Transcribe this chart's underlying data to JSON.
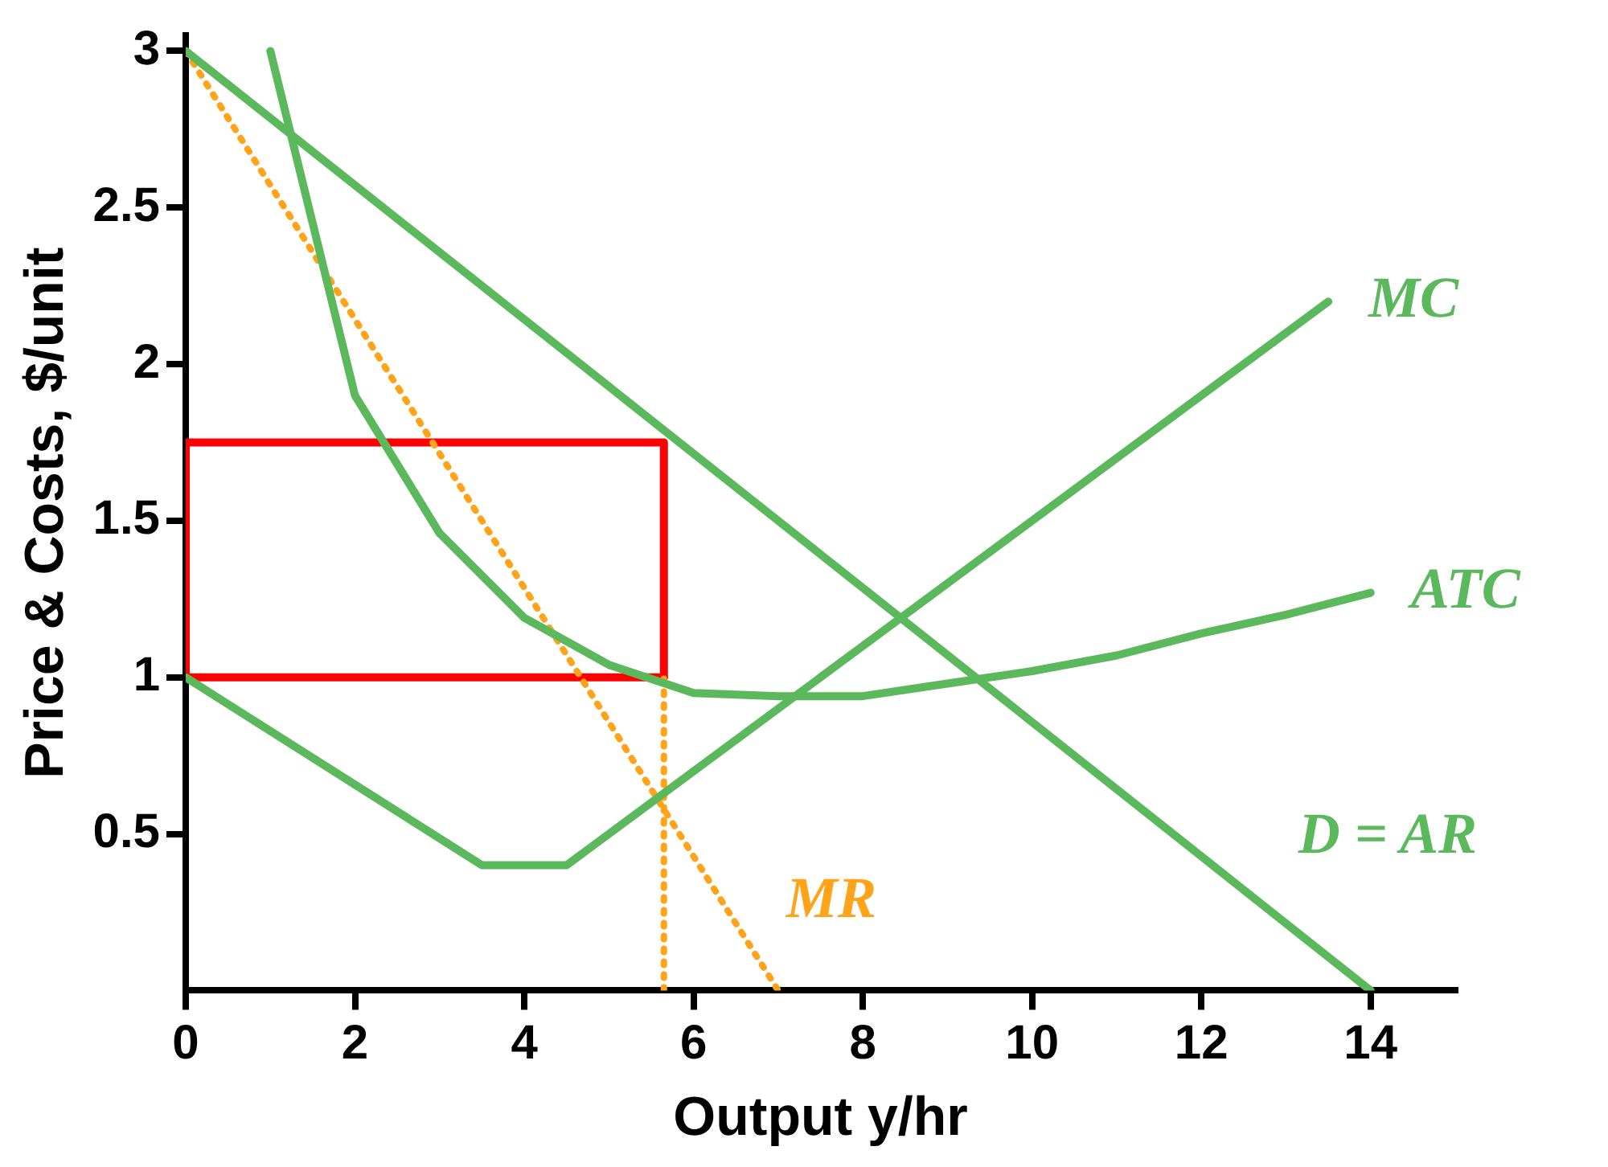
{
  "chart_data": {
    "type": "line",
    "xlabel": "Output y/hr",
    "ylabel": "Price & Costs, $/unit",
    "xlim": [
      0,
      15
    ],
    "ylim": [
      0,
      3.05
    ],
    "xticks": [
      0,
      2,
      4,
      6,
      8,
      10,
      12,
      14
    ],
    "yticks": [
      0.5,
      1,
      1.5,
      2,
      2.5,
      3
    ],
    "grid": false,
    "legend": false,
    "marker": "none",
    "series": [
      {
        "name": "D = AR",
        "color": "#5cb85c",
        "line_style": "solid",
        "x": [
          0,
          14
        ],
        "values": [
          3,
          0
        ]
      },
      {
        "name": "MC",
        "color": "#5cb85c",
        "line_style": "solid",
        "x": [
          0,
          3.5,
          4.5,
          13.5
        ],
        "values": [
          1,
          0.4,
          0.4,
          2.2
        ]
      },
      {
        "name": "ATC",
        "color": "#5cb85c",
        "line_style": "solid",
        "x": [
          1,
          2,
          3,
          4,
          5,
          6,
          7,
          8,
          9,
          10,
          11,
          12,
          13,
          14
        ],
        "values": [
          3,
          1.9,
          1.46,
          1.19,
          1.04,
          0.95,
          0.94,
          0.94,
          0.98,
          1.02,
          1.07,
          1.14,
          1.2,
          1.27
        ]
      },
      {
        "name": "MR",
        "color": "#ffa31a",
        "line_style": "dotted",
        "x": [
          0,
          7
        ],
        "values": [
          3,
          0
        ]
      },
      {
        "color": "#ffa31a",
        "line_style": "dotted",
        "x": [
          5.65,
          5.65
        ],
        "values": [
          0,
          1
        ]
      },
      {
        "color": "#ff0000",
        "line_style": "solid",
        "x": [
          0,
          0,
          5.65,
          5.65
        ],
        "values": [
          1,
          1.75,
          1.75,
          1
        ]
      },
      {
        "color": "#ff0000",
        "line_style": "solid",
        "x": [
          0,
          5.65
        ],
        "values": [
          1,
          1
        ]
      }
    ]
  }
}
